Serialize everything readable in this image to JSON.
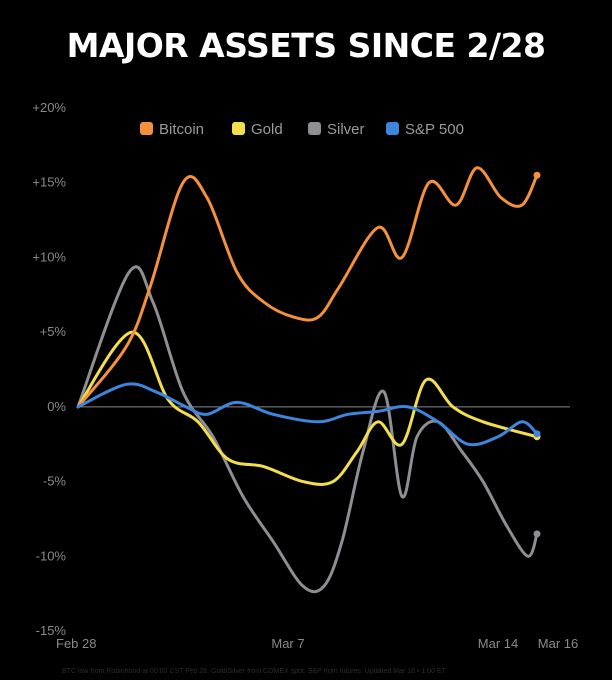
{
  "title": "MAJOR ASSETS SINCE 2/28",
  "footnote": "BTC low from Robinhood at 00:00 CST Feb 28. Gold/Silver from COMEX spot. S&P from futures. Updated Mar 16 • 1:00 ET",
  "colors": {
    "background": "#000000",
    "zero_line": "#8a8a8a",
    "tick_label": "#8a8a8a"
  },
  "chart_data": {
    "type": "line",
    "title": "MAJOR ASSETS SINCE 2/28",
    "xlabel": "",
    "ylabel": "",
    "ylim": [
      -15,
      20
    ],
    "yticks": [
      20,
      15,
      10,
      5,
      0,
      -5,
      -10,
      -15
    ],
    "ytick_labels": [
      "+20%",
      "+15%",
      "+10%",
      "+5%",
      "0%",
      "-5%",
      "-10%",
      "-15%"
    ],
    "xlim": [
      0,
      17
    ],
    "xticks": [
      0,
      7,
      14,
      16
    ],
    "xtick_labels": [
      "Feb 28",
      "Mar 7",
      "Mar 14",
      "Mar 16"
    ],
    "grid": false,
    "legend_position": "top",
    "series": [
      {
        "name": "Bitcoin",
        "color": "#f5913c",
        "x": [
          0,
          1.6,
          2.4,
          3.5,
          4.3,
          5.3,
          6.2,
          7.2,
          8.0,
          8.7,
          10.0,
          10.8,
          11.7,
          12.6,
          13.3,
          14.1,
          14.8,
          15.3
        ],
        "y": [
          0,
          4,
          8,
          15,
          14,
          9,
          7,
          6,
          6,
          8,
          12,
          10,
          15,
          13.5,
          16,
          14,
          13.5,
          15.5
        ]
      },
      {
        "name": "Gold",
        "color": "#f3de4b",
        "x": [
          0,
          1.8,
          3.0,
          4.0,
          5.0,
          6.2,
          7.5,
          8.5,
          9.3,
          10.0,
          10.8,
          11.6,
          12.5,
          13.5,
          15.3
        ],
        "y": [
          0,
          5,
          0.5,
          -1,
          -3.5,
          -4,
          -5,
          -5,
          -3,
          -1,
          -2.5,
          1.8,
          0,
          -1,
          -2
        ]
      },
      {
        "name": "Silver",
        "color": "#8e8e93",
        "x": [
          0,
          1.7,
          2.5,
          3.5,
          4.5,
          5.5,
          6.5,
          7.5,
          8.2,
          8.8,
          9.5,
          10.2,
          10.8,
          11.3,
          12.0,
          12.8,
          13.5,
          14.3,
          15.0,
          15.3
        ],
        "y": [
          0,
          9,
          7,
          1,
          -2,
          -6,
          -9,
          -12,
          -12,
          -9,
          -3,
          1,
          -6,
          -2,
          -1,
          -3,
          -5,
          -8,
          -10,
          -8.5
        ]
      },
      {
        "name": "S&P 500",
        "color": "#3d85dd",
        "x": [
          0,
          1.6,
          2.6,
          3.6,
          4.3,
          5.3,
          6.5,
          8.0,
          9.0,
          10.0,
          11.0,
          12.0,
          13.0,
          14.0,
          14.8,
          15.3
        ],
        "y": [
          0,
          1.5,
          1,
          0,
          -0.5,
          0.3,
          -0.5,
          -1,
          -0.5,
          -0.3,
          0,
          -1,
          -2.5,
          -2,
          -1,
          -1.8
        ]
      }
    ]
  }
}
